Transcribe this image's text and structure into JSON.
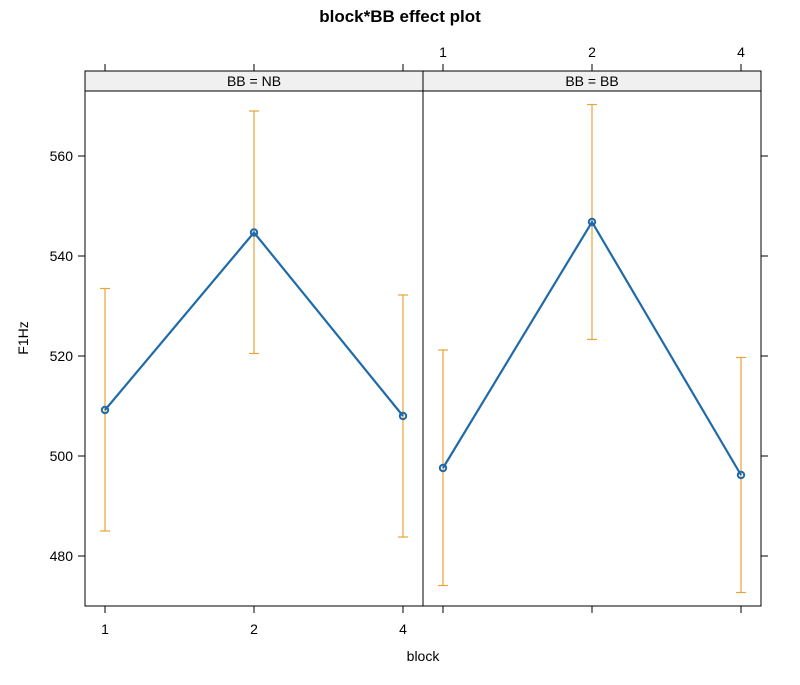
{
  "chart_data": {
    "type": "line",
    "title": "block*BB effect plot",
    "xlabel": "block",
    "ylabel": "F1Hz",
    "categories": [
      "1",
      "2",
      "4"
    ],
    "ylim": [
      470,
      573
    ],
    "yticks": [
      480,
      500,
      520,
      540,
      560
    ],
    "grid": false,
    "line_color": "#1f6aa8",
    "ci_color": "#e8a33a",
    "strip_color": "#f0f0f0",
    "panels": [
      {
        "strip": "BB = NB",
        "fit": [
          509.2,
          544.7,
          508.0
        ],
        "lower": [
          485.0,
          520.5,
          483.8
        ],
        "upper": [
          533.5,
          569.0,
          532.2
        ]
      },
      {
        "strip": "BB = BB",
        "fit": [
          497.6,
          546.8,
          496.2
        ],
        "lower": [
          474.1,
          523.3,
          472.7
        ],
        "upper": [
          521.2,
          570.3,
          519.7
        ]
      }
    ]
  }
}
